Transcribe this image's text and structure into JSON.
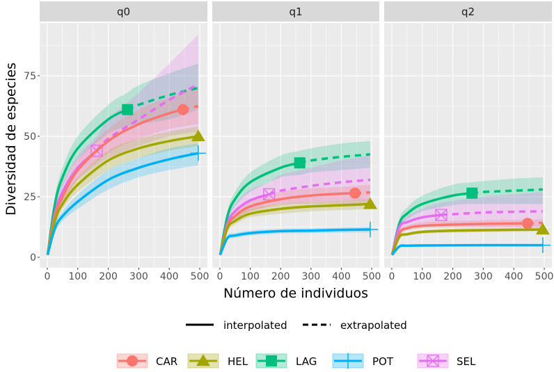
{
  "chart_data": {
    "type": "line",
    "xlabel": "Número de individuos",
    "ylabel": "Diversidad de especies",
    "xlim": [
      -25,
      525
    ],
    "ylim": [
      -4.3,
      96.8
    ],
    "x_ticks": [
      0,
      100,
      200,
      300,
      400,
      500
    ],
    "y_ticks": [
      0,
      25,
      50,
      75
    ],
    "grid": true,
    "linetype_legend": {
      "interpolated": "interpolated",
      "extrapolated": "extrapolated"
    },
    "legend_placement": "bottom",
    "series_meta": [
      {
        "name": "CAR",
        "color": "#F8766D",
        "marker": "circle"
      },
      {
        "name": "HEL",
        "color": "#A3A500",
        "marker": "triangle"
      },
      {
        "name": "LAG",
        "color": "#00BF7D",
        "marker": "square"
      },
      {
        "name": "POT",
        "color": "#00B0F6",
        "marker": "plus"
      },
      {
        "name": "SEL",
        "color": "#E76BF3",
        "marker": "square-cross"
      }
    ],
    "panels": [
      {
        "title": "q0",
        "series": {
          "LAG": {
            "observed_n": 263,
            "points": [
              [
                1,
                1,
                1,
                1
              ],
              [
                25,
                22,
                19,
                25
              ],
              [
                50,
                33,
                29,
                37
              ],
              [
                100,
                45,
                40,
                50
              ],
              [
                200,
                57,
                51,
                63
              ],
              [
                263,
                61,
                54,
                68
              ],
              [
                300,
                63,
                55,
                71
              ],
              [
                400,
                67,
                57,
                76
              ],
              [
                495,
                70,
                61,
                80
              ]
            ]
          },
          "SEL": {
            "observed_n": 162,
            "points": [
              [
                1,
                1,
                1,
                1
              ],
              [
                25,
                18,
                15,
                21
              ],
              [
                50,
                27,
                23,
                31
              ],
              [
                100,
                37,
                32,
                42
              ],
              [
                162,
                44,
                38,
                50
              ],
              [
                200,
                49,
                41,
                57
              ],
              [
                300,
                57,
                46,
                68
              ],
              [
                400,
                65,
                50,
                80
              ],
              [
                495,
                71.5,
                52,
                92
              ]
            ]
          },
          "CAR": {
            "observed_n": 445,
            "points": [
              [
                1,
                1,
                1,
                1
              ],
              [
                25,
                17,
                15,
                19
              ],
              [
                50,
                25,
                22,
                28
              ],
              [
                100,
                36,
                32,
                40
              ],
              [
                200,
                48,
                43,
                53
              ],
              [
                300,
                55,
                49,
                61
              ],
              [
                400,
                59.5,
                53,
                66
              ],
              [
                445,
                61,
                54,
                68
              ],
              [
                495,
                62.5,
                55,
                70
              ]
            ]
          },
          "HEL": {
            "observed_n": 495,
            "points": [
              [
                1,
                1,
                1,
                1
              ],
              [
                25,
                15,
                13,
                17
              ],
              [
                50,
                22,
                20,
                24
              ],
              [
                100,
                30,
                27,
                33
              ],
              [
                200,
                40,
                36,
                44
              ],
              [
                300,
                45,
                41,
                49
              ],
              [
                400,
                48,
                44,
                52
              ],
              [
                495,
                50,
                46,
                54
              ]
            ]
          },
          "POT": {
            "observed_n": 495,
            "points": [
              [
                1,
                1,
                1,
                1
              ],
              [
                25,
                12,
                10,
                14
              ],
              [
                50,
                17,
                15,
                19
              ],
              [
                100,
                23,
                20,
                26
              ],
              [
                200,
                32,
                28,
                36
              ],
              [
                300,
                37,
                33,
                41
              ],
              [
                400,
                40.5,
                36,
                45
              ],
              [
                495,
                43,
                38,
                47
              ]
            ]
          }
        }
      },
      {
        "title": "q1",
        "series": {
          "LAG": {
            "observed_n": 263,
            "points": [
              [
                1,
                1,
                1,
                1
              ],
              [
                25,
                17,
                15,
                19
              ],
              [
                50,
                24,
                21,
                27
              ],
              [
                100,
                31,
                27,
                35
              ],
              [
                200,
                37,
                33,
                42
              ],
              [
                263,
                39,
                34,
                44
              ],
              [
                300,
                40,
                35,
                45
              ],
              [
                400,
                41.5,
                36,
                47
              ],
              [
                495,
                42.5,
                37,
                48
              ]
            ]
          },
          "SEL": {
            "observed_n": 162,
            "points": [
              [
                1,
                1,
                1,
                1
              ],
              [
                25,
                14,
                12,
                16
              ],
              [
                50,
                19,
                16,
                22
              ],
              [
                100,
                23.5,
                19,
                28
              ],
              [
                162,
                26,
                21,
                31
              ],
              [
                200,
                27.5,
                22,
                34
              ],
              [
                300,
                29.5,
                22,
                37
              ],
              [
                400,
                31,
                22,
                40
              ],
              [
                495,
                32,
                22,
                42
              ]
            ]
          },
          "CAR": {
            "observed_n": 445,
            "points": [
              [
                1,
                1,
                1,
                1
              ],
              [
                25,
                13,
                11,
                15
              ],
              [
                50,
                17,
                15,
                19
              ],
              [
                100,
                21,
                19,
                23.5
              ],
              [
                200,
                24,
                21.5,
                27
              ],
              [
                300,
                25.5,
                23,
                28.5
              ],
              [
                400,
                26.3,
                23.5,
                29
              ],
              [
                445,
                26.5,
                23.5,
                29.5
              ],
              [
                495,
                26.8,
                23.5,
                30
              ]
            ]
          },
          "HEL": {
            "observed_n": 495,
            "points": [
              [
                1,
                1,
                1,
                1
              ],
              [
                25,
                12,
                10.5,
                13.5
              ],
              [
                50,
                15,
                13.5,
                16.5
              ],
              [
                100,
                18,
                16.5,
                20
              ],
              [
                200,
                20,
                18,
                22
              ],
              [
                300,
                21,
                19,
                23
              ],
              [
                400,
                21.5,
                19.5,
                23.5
              ],
              [
                495,
                22,
                20,
                24
              ]
            ]
          },
          "POT": {
            "observed_n": 495,
            "points": [
              [
                1,
                1,
                1,
                1
              ],
              [
                25,
                8,
                7,
                9
              ],
              [
                50,
                9,
                8,
                10
              ],
              [
                100,
                10,
                9,
                11
              ],
              [
                200,
                10.8,
                9.8,
                11.8
              ],
              [
                300,
                11,
                10,
                12
              ],
              [
                400,
                11.3,
                10.2,
                12.3
              ],
              [
                495,
                11.5,
                10.3,
                12.5
              ]
            ]
          }
        }
      },
      {
        "title": "q2",
        "series": {
          "LAG": {
            "observed_n": 263,
            "points": [
              [
                1,
                1,
                1,
                1
              ],
              [
                25,
                14,
                12,
                16
              ],
              [
                50,
                18,
                15.5,
                20.5
              ],
              [
                100,
                22,
                19,
                25.5
              ],
              [
                200,
                25.5,
                21.5,
                30
              ],
              [
                263,
                26.5,
                22,
                31
              ],
              [
                300,
                27,
                22,
                31.5
              ],
              [
                400,
                27.5,
                22,
                32.5
              ],
              [
                495,
                28,
                22,
                33
              ]
            ]
          },
          "SEL": {
            "observed_n": 162,
            "points": [
              [
                1,
                1,
                1,
                1
              ],
              [
                25,
                12.5,
                10.5,
                14.5
              ],
              [
                50,
                14.5,
                12,
                17
              ],
              [
                100,
                16.5,
                13,
                20
              ],
              [
                162,
                17.5,
                13,
                22.5
              ],
              [
                300,
                18.5,
                12.5,
                25
              ],
              [
                400,
                18.8,
                12.3,
                26
              ],
              [
                495,
                19,
                12,
                27
              ]
            ]
          },
          "CAR": {
            "observed_n": 445,
            "points": [
              [
                1,
                1,
                1,
                1
              ],
              [
                25,
                10,
                9,
                11
              ],
              [
                50,
                12,
                11,
                13
              ],
              [
                100,
                13,
                12,
                14.5
              ],
              [
                200,
                13.5,
                12.2,
                15
              ],
              [
                300,
                13.8,
                12.3,
                15.3
              ],
              [
                445,
                14,
                12.5,
                15.5
              ],
              [
                495,
                14.2,
                12.5,
                15.8
              ]
            ]
          },
          "HEL": {
            "observed_n": 495,
            "points": [
              [
                1,
                1,
                1,
                1
              ],
              [
                25,
                8.5,
                7.8,
                9.2
              ],
              [
                50,
                9.5,
                8.8,
                10.2
              ],
              [
                100,
                10.5,
                9.8,
                11.2
              ],
              [
                200,
                11,
                10.2,
                11.8
              ],
              [
                300,
                11.2,
                10.4,
                12
              ],
              [
                495,
                11.5,
                10.7,
                12.3
              ]
            ]
          },
          "POT": {
            "observed_n": 495,
            "points": [
              [
                1,
                1,
                1,
                1
              ],
              [
                25,
                4.5,
                4,
                5
              ],
              [
                50,
                4.8,
                4.3,
                5.3
              ],
              [
                100,
                4.9,
                4.4,
                5.4
              ],
              [
                300,
                5,
                4.5,
                5.5
              ],
              [
                495,
                5,
                4.5,
                5.5
              ]
            ]
          }
        }
      }
    ]
  }
}
